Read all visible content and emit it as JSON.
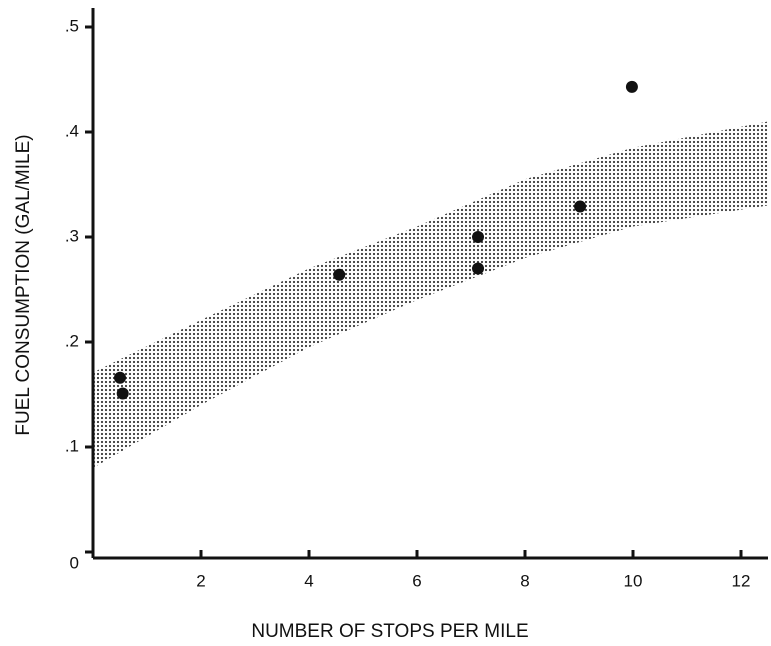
{
  "chart_data": {
    "type": "scatter",
    "xlabel": "NUMBER OF STOPS PER MILE",
    "ylabel": "FUEL CONSUMPTION (GAL/MILE)",
    "xlim": [
      0,
      12.5
    ],
    "ylim": [
      0,
      0.5
    ],
    "xticks": [
      2,
      4,
      6,
      8,
      10,
      12
    ],
    "yticks": [
      0,
      {
        "value": 0.1,
        "label": ".1"
      },
      {
        "value": 0.2,
        "label": ".2"
      },
      {
        "value": 0.3,
        "label": ".3"
      },
      {
        "value": 0.4,
        "label": ".4"
      },
      {
        "value": 0.5,
        "label": ".5"
      }
    ],
    "color": "#111111",
    "x": [
      0.5,
      0.55,
      4.56,
      7.13,
      7.13,
      9.02,
      9.98
    ],
    "values": [
      0.166,
      0.151,
      0.264,
      0.3,
      0.27,
      0.329,
      0.443
    ],
    "band": {
      "color": "#222222",
      "x": [
        0,
        2,
        4,
        6,
        8,
        10,
        12.5
      ],
      "upper": [
        0.171,
        0.221,
        0.27,
        0.31,
        0.355,
        0.385,
        0.41
      ],
      "lower": [
        0.08,
        0.14,
        0.195,
        0.24,
        0.28,
        0.31,
        0.33
      ]
    }
  }
}
